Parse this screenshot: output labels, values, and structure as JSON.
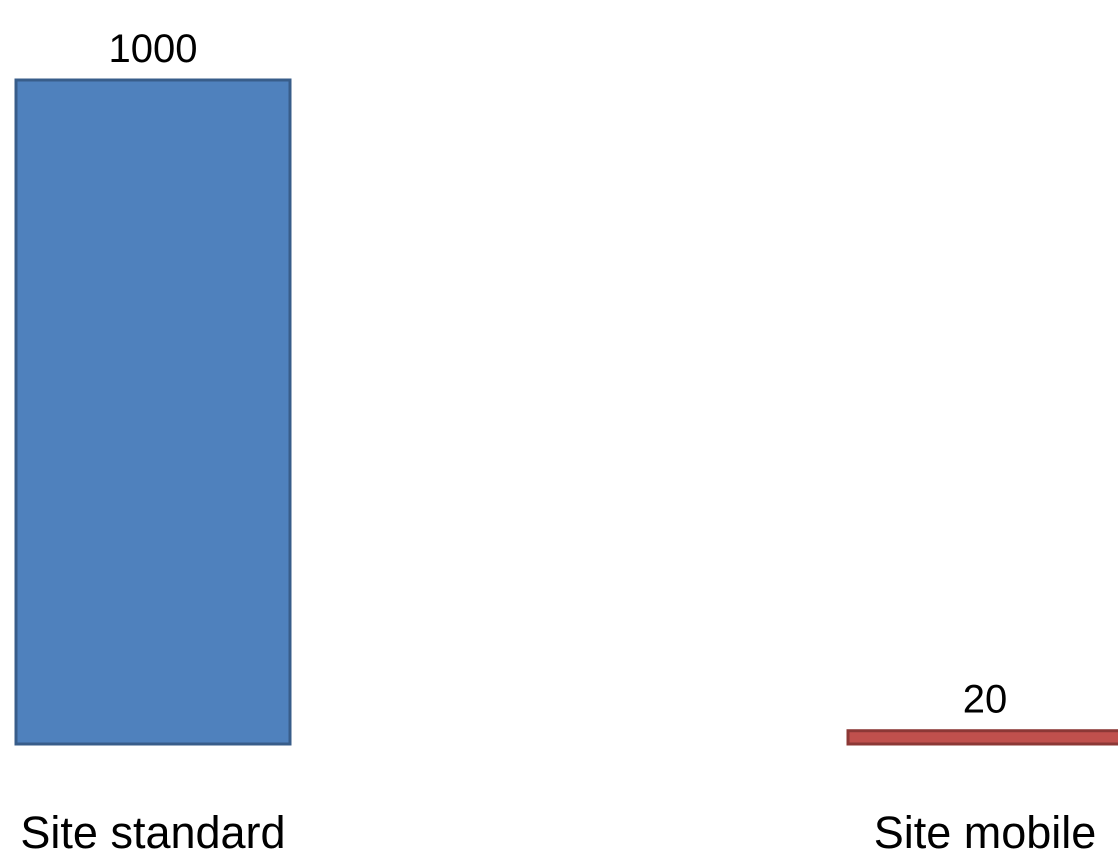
{
  "chart_data": {
    "type": "bar",
    "categories": [
      "Site standard",
      "Site mobile"
    ],
    "values": [
      1000,
      20
    ],
    "value_labels": [
      "1000",
      "20"
    ],
    "title": "",
    "xlabel": "",
    "ylabel": "",
    "ylim": [
      0,
      1000
    ],
    "grid": false,
    "legend": "none",
    "colors": [
      "#4F81BD",
      "#C0504D"
    ],
    "border_colors": [
      "#385D8A",
      "#8C3836"
    ]
  }
}
